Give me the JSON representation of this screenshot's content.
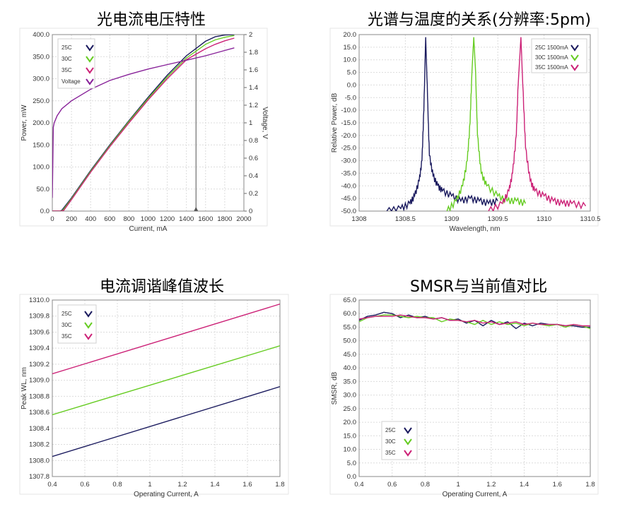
{
  "chart_data": [
    {
      "id": "liv",
      "type": "line",
      "title": "光电流电压特性",
      "xlabel": "Current, mA",
      "ylabel": "Power, mW",
      "y2label": "Voltage, V",
      "xlim": [
        0,
        2000
      ],
      "ylim": [
        0,
        400
      ],
      "y2lim": [
        0,
        2
      ],
      "xticks": [
        "0",
        "200",
        "400",
        "600",
        "800",
        "1000",
        "1200",
        "1400",
        "1600",
        "1800",
        "2000"
      ],
      "yticks": [
        "0.0",
        "50.0",
        "100.0",
        "150.0",
        "200.0",
        "250.0",
        "300.0",
        "350.0",
        "400.0"
      ],
      "y2ticks": [
        "0",
        "0.2",
        "0.4",
        "0.6",
        "0.8",
        "1",
        "1.2",
        "1.4",
        "1.6",
        "1.8",
        "2"
      ],
      "cursor_x": 1500,
      "legend_position": "top-left",
      "series": [
        {
          "name": "25C",
          "color": "#1a1a5e",
          "axis": "left",
          "x": [
            0,
            80,
            100,
            200,
            400,
            600,
            800,
            1000,
            1200,
            1400,
            1600,
            1700,
            1800,
            1900
          ],
          "y": [
            0,
            0,
            2,
            30,
            92,
            150,
            205,
            258,
            308,
            352,
            385,
            395,
            399,
            400
          ]
        },
        {
          "name": "30C",
          "color": "#66cc22",
          "axis": "left",
          "x": [
            0,
            90,
            110,
            200,
            400,
            600,
            800,
            1000,
            1200,
            1400,
            1600,
            1700,
            1800,
            1900
          ],
          "y": [
            0,
            0,
            2,
            28,
            90,
            148,
            203,
            255,
            304,
            347,
            378,
            388,
            394,
            398
          ]
        },
        {
          "name": "35C",
          "color": "#cc2277",
          "axis": "left",
          "x": [
            0,
            100,
            120,
            200,
            400,
            600,
            800,
            1000,
            1200,
            1400,
            1600,
            1700,
            1800,
            1900
          ],
          "y": [
            0,
            0,
            2,
            26,
            88,
            146,
            200,
            252,
            300,
            343,
            368,
            378,
            386,
            392
          ]
        },
        {
          "name": "Voltage",
          "color": "#882299",
          "axis": "right",
          "x": [
            0,
            10,
            20,
            50,
            100,
            200,
            400,
            600,
            800,
            1000,
            1200,
            1400,
            1600,
            1800,
            1900
          ],
          "y": [
            0.15,
            0.95,
            1.0,
            1.08,
            1.16,
            1.25,
            1.38,
            1.48,
            1.55,
            1.61,
            1.66,
            1.71,
            1.76,
            1.82,
            1.85
          ]
        }
      ]
    },
    {
      "id": "spec",
      "type": "line",
      "title": "光谱与温度的关系(分辨率:5pm)",
      "xlabel": "Wavelength, nm",
      "ylabel": "Relative Power, dB",
      "xlim": [
        1308,
        1310.5
      ],
      "ylim": [
        -50,
        20
      ],
      "xticks": [
        "1308",
        "1308.5",
        "1309",
        "1309.5",
        "1310",
        "1310.5"
      ],
      "yticks": [
        "-50.0",
        "-45.0",
        "-40.0",
        "-35.0",
        "-30.0",
        "-25.0",
        "-20.0",
        "-15.0",
        "-10.0",
        "-5.0",
        "0.0",
        "5.0",
        "10.0",
        "15.0",
        "20.0"
      ],
      "legend_position": "top-right",
      "series": [
        {
          "name": "25C 1500mA",
          "color": "#1a1a5e",
          "x": [
            1308.3,
            1308.45,
            1308.55,
            1308.6,
            1308.65,
            1308.68,
            1308.7,
            1308.72,
            1308.74,
            1308.76,
            1308.8,
            1308.85,
            1308.9,
            1309.0,
            1309.1,
            1309.2,
            1309.3,
            1309.4,
            1309.5
          ],
          "y": [
            -50,
            -49,
            -47,
            -44,
            -38,
            -30,
            -10,
            19,
            -5,
            -28,
            -36,
            -40,
            -42,
            -44,
            -46,
            -45,
            -46,
            -47,
            -46
          ]
        },
        {
          "name": "30C 1500mA",
          "color": "#66cc22",
          "x": [
            1308.95,
            1309.05,
            1309.12,
            1309.17,
            1309.2,
            1309.22,
            1309.24,
            1309.26,
            1309.28,
            1309.32,
            1309.38,
            1309.5,
            1309.6,
            1309.7,
            1309.8
          ],
          "y": [
            -50,
            -46,
            -40,
            -30,
            -15,
            5,
            19,
            5,
            -20,
            -35,
            -40,
            -44,
            -46,
            -46,
            -47
          ]
        },
        {
          "name": "35C 1500mA",
          "color": "#cc2277",
          "x": [
            1309.4,
            1309.55,
            1309.62,
            1309.66,
            1309.7,
            1309.72,
            1309.75,
            1309.77,
            1309.8,
            1309.85,
            1309.9,
            1310.0,
            1310.1,
            1310.2,
            1310.3,
            1310.45
          ],
          "y": [
            -50,
            -47,
            -42,
            -35,
            -20,
            0,
            19,
            0,
            -25,
            -38,
            -42,
            -44,
            -46,
            -47,
            -47,
            -48
          ]
        }
      ]
    },
    {
      "id": "tune",
      "type": "line",
      "title": "电流调谐峰值波长",
      "xlabel": "Operating Current, A",
      "ylabel": "Peak WL, nm",
      "xlim": [
        0.4,
        1.8
      ],
      "ylim": [
        1307.8,
        1310
      ],
      "xticks": [
        "0.4",
        "0.6",
        "0.8",
        "1",
        "1.2",
        "1.4",
        "1.6",
        "1.8"
      ],
      "yticks": [
        "1307.8",
        "1308.0",
        "1308.2",
        "1308.4",
        "1308.6",
        "1308.8",
        "1309.0",
        "1309.2",
        "1309.4",
        "1309.6",
        "1309.8",
        "1310.0"
      ],
      "legend_position": "top-left",
      "series": [
        {
          "name": "25C",
          "color": "#1a1a5e",
          "x": [
            0.4,
            1.8
          ],
          "y": [
            1308.05,
            1308.92
          ]
        },
        {
          "name": "30C",
          "color": "#66cc22",
          "x": [
            0.4,
            1.8
          ],
          "y": [
            1308.57,
            1309.43
          ]
        },
        {
          "name": "35C",
          "color": "#cc2277",
          "x": [
            0.4,
            1.8
          ],
          "y": [
            1309.08,
            1309.95
          ]
        }
      ]
    },
    {
      "id": "smsr",
      "type": "line",
      "title": "SMSR与当前值对比",
      "xlabel": "Operating Current, A",
      "ylabel": "SMSR, dB",
      "xlim": [
        0.4,
        1.8
      ],
      "ylim": [
        0,
        65
      ],
      "xticks": [
        "0.4",
        "0.6",
        "0.8",
        "1",
        "1.2",
        "1.4",
        "1.6",
        "1.8"
      ],
      "yticks": [
        "0.0",
        "5.0",
        "10.0",
        "15.0",
        "20.0",
        "25.0",
        "30.0",
        "35.0",
        "40.0",
        "45.0",
        "50.0",
        "55.0",
        "60.0",
        "65.0"
      ],
      "legend_position": "bottom-left",
      "series": [
        {
          "name": "25C",
          "color": "#1a1a5e",
          "x": [
            0.4,
            0.45,
            0.5,
            0.55,
            0.6,
            0.65,
            0.7,
            0.75,
            0.8,
            0.85,
            0.9,
            0.95,
            1.0,
            1.05,
            1.1,
            1.15,
            1.2,
            1.25,
            1.3,
            1.35,
            1.4,
            1.45,
            1.5,
            1.55,
            1.6,
            1.65,
            1.7,
            1.75,
            1.8
          ],
          "y": [
            57.5,
            59,
            59.5,
            60.5,
            60,
            58.5,
            59.5,
            58.5,
            59,
            58,
            58.5,
            57.5,
            58,
            56.5,
            57.5,
            55.5,
            57.5,
            56,
            57,
            54.5,
            56.5,
            55.5,
            56.5,
            56,
            56,
            55.5,
            55.5,
            55,
            55
          ]
        },
        {
          "name": "30C",
          "color": "#66cc22",
          "x": [
            0.4,
            0.45,
            0.5,
            0.55,
            0.6,
            0.65,
            0.7,
            0.75,
            0.8,
            0.85,
            0.9,
            0.95,
            1.0,
            1.05,
            1.1,
            1.15,
            1.2,
            1.25,
            1.3,
            1.35,
            1.4,
            1.45,
            1.5,
            1.55,
            1.6,
            1.65,
            1.7,
            1.75,
            1.8
          ],
          "y": [
            57,
            58.5,
            59,
            59.5,
            59.5,
            59,
            58.5,
            59,
            58.5,
            58.5,
            57,
            58,
            57.5,
            57,
            56,
            57.5,
            56,
            57,
            56,
            56.5,
            55.5,
            56.5,
            56,
            55.5,
            56,
            55,
            56,
            55.5,
            54.5
          ]
        },
        {
          "name": "35C",
          "color": "#cc2277",
          "x": [
            0.4,
            0.45,
            0.5,
            0.55,
            0.6,
            0.65,
            0.7,
            0.75,
            0.8,
            0.85,
            0.9,
            0.95,
            1.0,
            1.05,
            1.1,
            1.15,
            1.2,
            1.25,
            1.3,
            1.35,
            1.4,
            1.45,
            1.5,
            1.55,
            1.6,
            1.65,
            1.7,
            1.75,
            1.8
          ],
          "y": [
            58,
            58.5,
            59,
            59,
            59,
            59.5,
            59,
            58.5,
            58.5,
            58,
            58.5,
            57.5,
            57.5,
            57,
            57.5,
            56.5,
            57,
            56,
            56.5,
            57,
            56,
            56.5,
            56,
            56,
            56,
            55.5,
            56,
            55.5,
            55.5
          ]
        }
      ]
    }
  ]
}
